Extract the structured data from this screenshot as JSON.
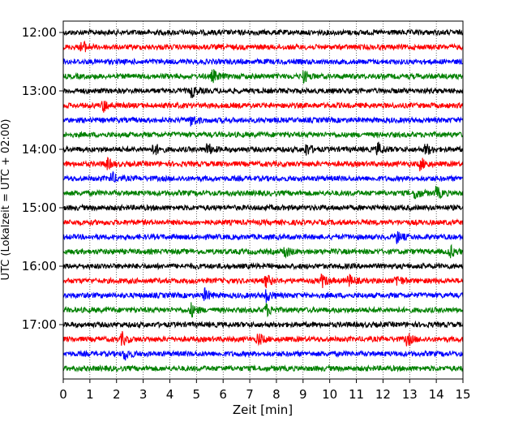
{
  "chart_data": {
    "type": "line",
    "xlabel": "Zeit  [min]",
    "ylabel": "UTC (Lokalzeit = UTC + 02:00)",
    "xlim": [
      0,
      15
    ],
    "x_ticks": [
      "0",
      "1",
      "2",
      "3",
      "4",
      "5",
      "6",
      "7",
      "8",
      "9",
      "10",
      "11",
      "12",
      "13",
      "14",
      "15"
    ],
    "y_ticks": [
      "12:00",
      "13:00",
      "14:00",
      "15:00",
      "16:00",
      "17:00"
    ],
    "grid": "vertical dotted",
    "trace_interval_min": 15,
    "trace_colors": [
      "#000000",
      "#ff0000",
      "#0000ff",
      "#008000"
    ],
    "traces": [
      {
        "start": "12:00",
        "events": []
      },
      {
        "start": "12:15",
        "events": [
          0.7
        ]
      },
      {
        "start": "12:30",
        "events": []
      },
      {
        "start": "12:45",
        "events": [
          5.6,
          9.0
        ]
      },
      {
        "start": "13:00",
        "events": [
          4.8
        ]
      },
      {
        "start": "13:15",
        "events": [
          1.5
        ]
      },
      {
        "start": "13:30",
        "events": [
          4.8
        ]
      },
      {
        "start": "13:45",
        "events": []
      },
      {
        "start": "14:00",
        "events": [
          3.4,
          5.4,
          9.1,
          11.8,
          13.6
        ]
      },
      {
        "start": "14:15",
        "events": [
          1.6,
          13.4
        ]
      },
      {
        "start": "14:30",
        "events": [
          1.8
        ]
      },
      {
        "start": "14:45",
        "events": [
          13.2,
          14.0
        ]
      },
      {
        "start": "15:00",
        "events": []
      },
      {
        "start": "15:15",
        "events": []
      },
      {
        "start": "15:30",
        "events": [
          12.5
        ]
      },
      {
        "start": "15:45",
        "events": [
          8.3,
          14.5
        ]
      },
      {
        "start": "16:00",
        "events": []
      },
      {
        "start": "16:15",
        "events": [
          7.6,
          9.7,
          10.7,
          12.5
        ]
      },
      {
        "start": "16:30",
        "events": [
          5.3,
          7.6
        ]
      },
      {
        "start": "16:45",
        "events": [
          4.8,
          7.6
        ]
      },
      {
        "start": "17:00",
        "events": []
      },
      {
        "start": "17:15",
        "events": [
          2.2,
          7.3,
          12.9
        ]
      },
      {
        "start": "17:30",
        "events": [
          2.3
        ]
      },
      {
        "start": "17:45",
        "events": []
      }
    ]
  }
}
